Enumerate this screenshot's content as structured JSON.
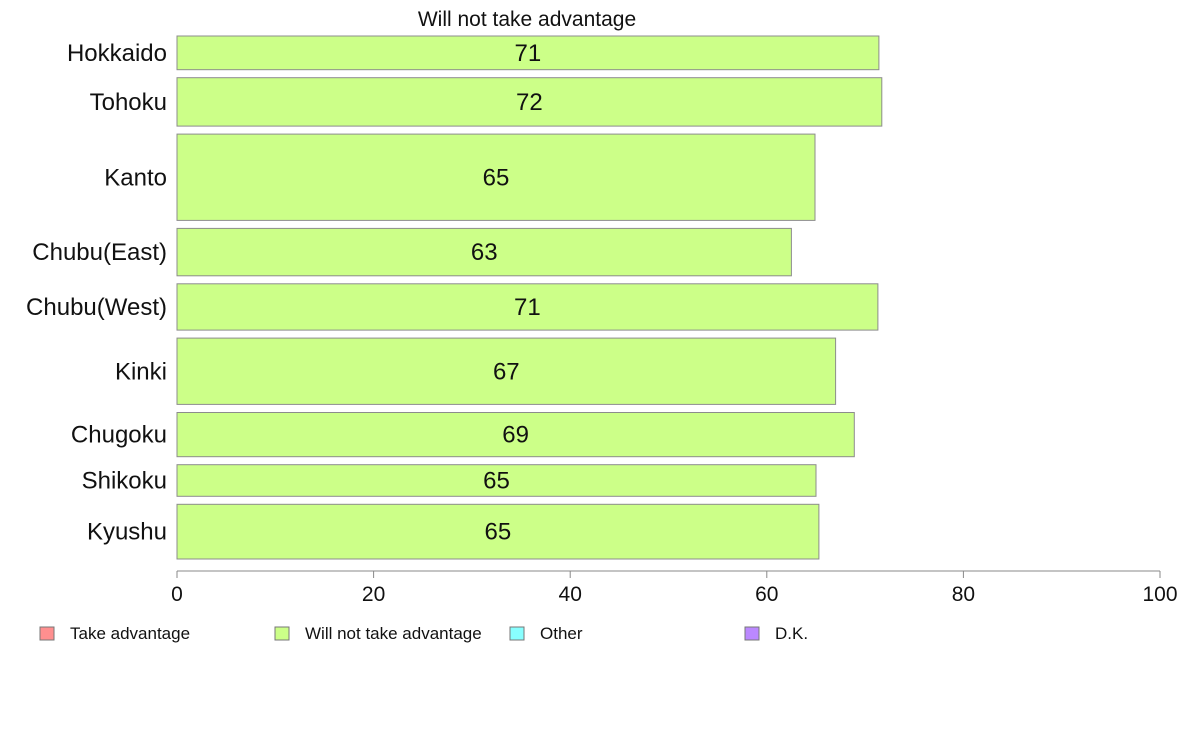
{
  "chart_data": {
    "type": "bar",
    "orientation": "horizontal",
    "title": "Will not take advantage",
    "categories": [
      "Hokkaido",
      "Tohoku",
      "Kanto",
      "Chubu(East)",
      "Chubu(West)",
      "Kinki",
      "Chugoku",
      "Shikoku",
      "Kyushu"
    ],
    "category_weights": [
      0.64,
      0.92,
      1.64,
      0.9,
      0.88,
      1.26,
      0.84,
      0.6,
      1.04
    ],
    "series": [
      {
        "name": "Will not take advantage",
        "color": "#ccff88",
        "values": [
          71.4,
          71.7,
          64.9,
          62.5,
          71.3,
          67.0,
          68.9,
          65.0,
          65.3
        ],
        "labels": [
          "71",
          "72",
          "65",
          "63",
          "71",
          "67",
          "69",
          "65",
          "65"
        ]
      }
    ],
    "xlim": [
      0,
      100
    ],
    "xticks": [
      "0",
      "20",
      "40",
      "60",
      "80",
      "100"
    ],
    "xlabel": "",
    "ylabel": "",
    "grid": false,
    "legend": {
      "placement": "bottom",
      "entries": [
        {
          "label": "Take advantage",
          "color": "#ff8f8f"
        },
        {
          "label": "Will not take advantage",
          "color": "#ccff88"
        },
        {
          "label": "Other",
          "color": "#88ffff"
        },
        {
          "label": "D.K.",
          "color": "#bb88ff"
        }
      ]
    }
  }
}
